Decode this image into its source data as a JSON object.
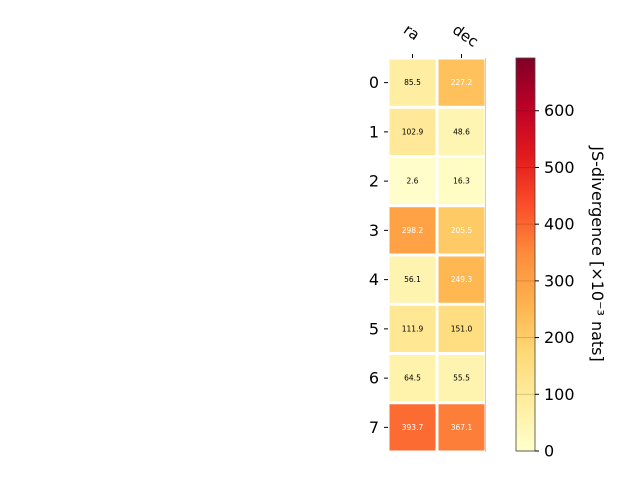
{
  "chart_data": {
    "type": "heatmap",
    "columns": [
      "ra",
      "dec"
    ],
    "rows": [
      "0",
      "1",
      "2",
      "3",
      "4",
      "5",
      "6",
      "7"
    ],
    "values": [
      [
        85.5,
        227.2
      ],
      [
        102.9,
        48.6
      ],
      [
        2.6,
        16.3
      ],
      [
        298.2,
        205.5
      ],
      [
        56.1,
        249.3
      ],
      [
        111.9,
        151.0
      ],
      [
        64.5,
        55.5
      ],
      [
        393.7,
        367.1
      ]
    ],
    "cell_labels": [
      [
        "85.5",
        "227.2"
      ],
      [
        "102.9",
        "48.6"
      ],
      [
        "2.6",
        "16.3"
      ],
      [
        "298.2",
        "205.5"
      ],
      [
        "56.1",
        "249.3"
      ],
      [
        "111.9",
        "151.0"
      ],
      [
        "64.5",
        "55.5"
      ],
      [
        "393.7",
        "367.1"
      ]
    ],
    "colorbar": {
      "label": "JS-divergence [×10⁻³ nats]",
      "range": [
        0,
        693
      ],
      "ticks": [
        0,
        100,
        200,
        300,
        400,
        500,
        600
      ],
      "colormap": "YlOrRd"
    },
    "grid": false,
    "legend": "none"
  }
}
